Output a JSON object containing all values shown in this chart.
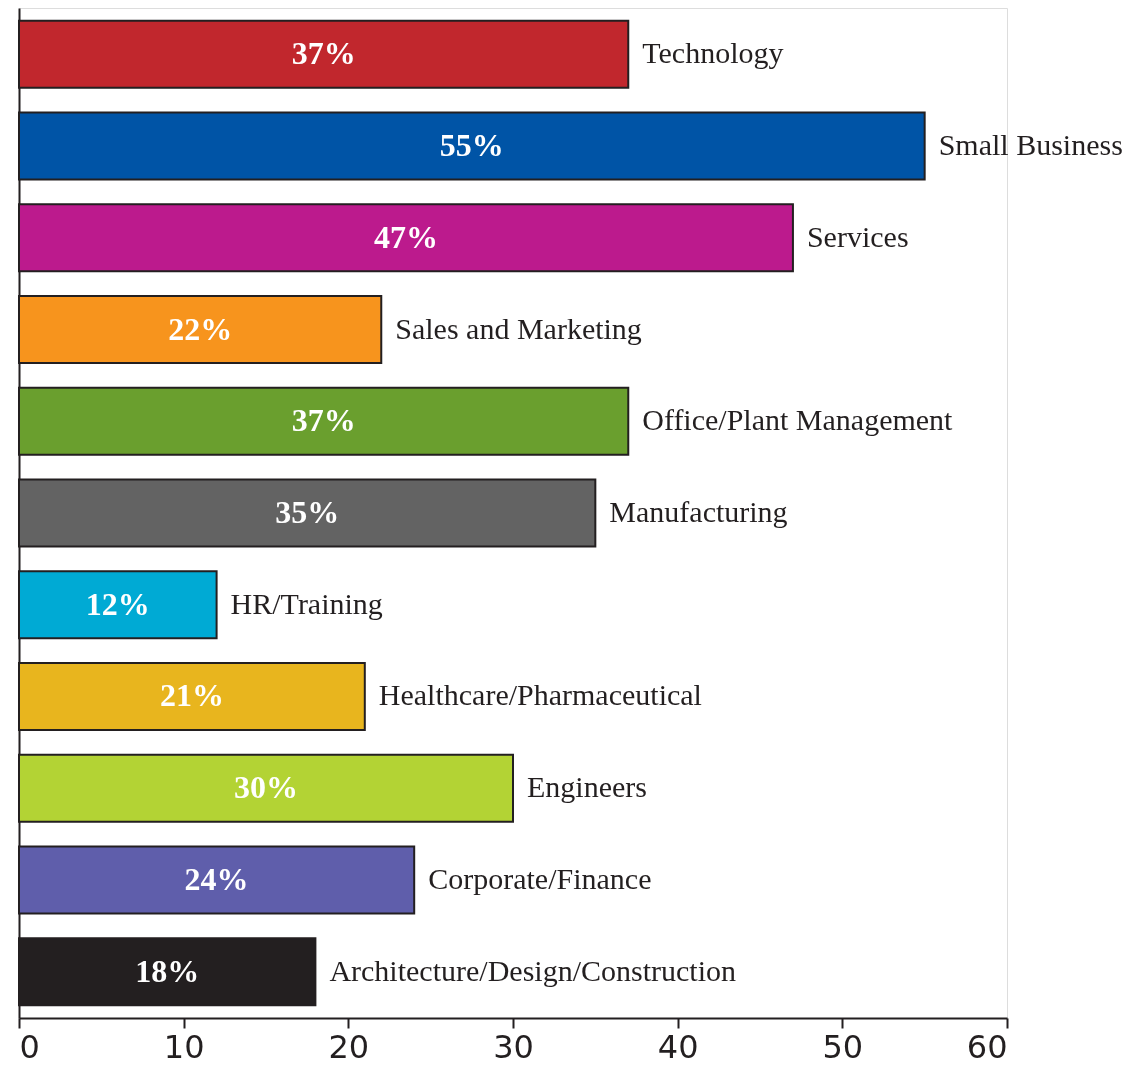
{
  "chart_data": {
    "type": "bar",
    "orientation": "horizontal",
    "categories": [
      "Technology",
      "Small Business",
      "Services",
      "Sales and Marketing",
      "Office/Plant Management",
      "Manufacturing",
      "HR/Training",
      "Healthcare/Pharmaceutical",
      "Engineers",
      "Corporate/Finance",
      "Architecture/Design/Construction"
    ],
    "values": [
      37,
      55,
      47,
      22,
      37,
      35,
      12,
      21,
      30,
      24,
      18
    ],
    "value_labels": [
      "37%",
      "55%",
      "47%",
      "22%",
      "37%",
      "35%",
      "12%",
      "21%",
      "30%",
      "24%",
      "18%"
    ],
    "colors": [
      "#c1272d",
      "#0054a6",
      "#bc1a8d",
      "#f7941d",
      "#6a9f2e",
      "#636363",
      "#00aad4",
      "#e8b51e",
      "#b3d334",
      "#5f5eab",
      "#231f20"
    ],
    "xlim": [
      0,
      60
    ],
    "xticks": [
      0,
      10,
      20,
      30,
      40,
      50,
      60
    ],
    "grid": false
  }
}
